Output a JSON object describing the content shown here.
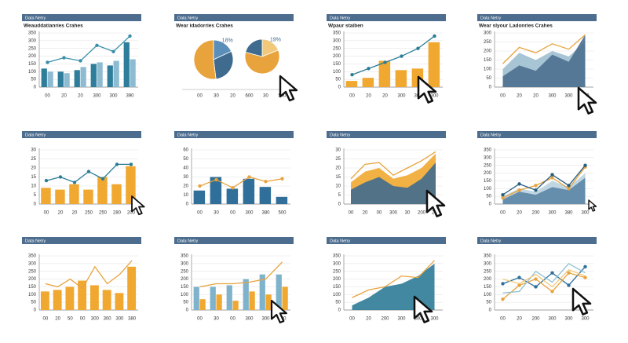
{
  "chart_data": [
    {
      "type": "combo",
      "header": "Data Netry",
      "title": "Weauddatianries Crahes",
      "categories": [
        "00",
        "20",
        "20",
        "300",
        "300",
        "390"
      ],
      "ylim": [
        0,
        350
      ],
      "yticks": [
        0,
        50,
        100,
        150,
        200,
        250,
        300,
        350
      ],
      "grid": true,
      "series": [
        {
          "type": "bar",
          "color": "#2e7d9a",
          "values": [
            120,
            100,
            110,
            150,
            140,
            290
          ]
        },
        {
          "type": "bar",
          "color": "#8dbbd2",
          "values": [
            100,
            90,
            130,
            160,
            170,
            180
          ]
        },
        {
          "type": "line",
          "color": "#3a8fa8",
          "markers": true,
          "values": [
            160,
            190,
            170,
            270,
            230,
            330
          ]
        }
      ]
    },
    {
      "type": "pie",
      "header": "Data Netry",
      "title": "Wear idadorries Crahes",
      "categories": [
        "00",
        "30",
        "20",
        "600",
        "30",
        "500"
      ],
      "pies": [
        {
          "values": [
            18,
            30,
            52
          ],
          "colors": [
            "#5b8fb9",
            "#3f6b8f",
            "#e8a33d"
          ],
          "value_labels": [
            "18%",
            null,
            null
          ]
        },
        {
          "values": [
            19,
            60,
            21
          ],
          "colors": [
            "#f2c87a",
            "#e8a33d",
            "#3f6b8f"
          ],
          "value_labels": [
            "19%",
            null,
            null
          ]
        }
      ]
    },
    {
      "type": "combo",
      "header": "Data Netry",
      "title": "Wpaur staiben",
      "categories": [
        "00",
        "20",
        "20",
        "300",
        "300",
        "300"
      ],
      "ylim": [
        0,
        350
      ],
      "yticks": [
        0,
        50,
        100,
        150,
        200,
        250,
        300,
        350
      ],
      "grid": true,
      "series": [
        {
          "type": "bar",
          "color": "#f0a830",
          "values": [
            40,
            60,
            170,
            110,
            120,
            290
          ]
        },
        {
          "type": "line",
          "color": "#2a7d95",
          "markers": true,
          "values": [
            80,
            120,
            160,
            200,
            250,
            330
          ]
        }
      ]
    },
    {
      "type": "area",
      "header": "Data Netry",
      "title": "Wear slyour Ladonries Crahes",
      "categories": [
        "00",
        "20",
        "20",
        "300",
        "300",
        "300"
      ],
      "ylim": [
        0,
        300
      ],
      "yticks": [
        0,
        50,
        100,
        150,
        200,
        250,
        300
      ],
      "grid": true,
      "series": [
        {
          "type": "area",
          "color": "#9fbfd0",
          "values": [
            100,
            190,
            150,
            200,
            170,
            250
          ]
        },
        {
          "type": "area",
          "color": "#4b6f8f",
          "values": [
            60,
            120,
            90,
            180,
            140,
            290
          ]
        },
        {
          "type": "line",
          "color": "#e8a33d",
          "markers": false,
          "values": [
            130,
            220,
            190,
            240,
            210,
            290
          ]
        }
      ]
    },
    {
      "type": "combo",
      "header": "Data Netry",
      "categories": [
        "00",
        "20",
        "20",
        "250",
        "250",
        "280",
        "200"
      ],
      "ylim": [
        0,
        30
      ],
      "yticks": [
        0,
        5,
        10,
        15,
        20,
        25,
        30
      ],
      "grid": true,
      "series": [
        {
          "type": "bar",
          "color": "#f0a830",
          "values": [
            9,
            8,
            11,
            8,
            15,
            11,
            21
          ]
        },
        {
          "type": "line",
          "color": "#2a7d95",
          "markers": true,
          "values": [
            13,
            15,
            12,
            18,
            14,
            22,
            22
          ]
        }
      ]
    },
    {
      "type": "combo",
      "header": "Data Netry",
      "categories": [
        "00",
        "30",
        "00",
        "300",
        "380",
        "500"
      ],
      "ylim": [
        0,
        60
      ],
      "yticks": [
        0,
        10,
        20,
        30,
        40,
        50,
        60
      ],
      "grid": true,
      "series": [
        {
          "type": "bar",
          "color": "#2f6f9a",
          "values": [
            15,
            30,
            17,
            28,
            19,
            8
          ]
        },
        {
          "type": "line",
          "color": "#e8a33d",
          "markers": true,
          "values": [
            20,
            27,
            18,
            30,
            25,
            28
          ]
        }
      ]
    },
    {
      "type": "area",
      "header": "Data Netry",
      "categories": [
        "00",
        "20",
        "00",
        "300",
        "30",
        "200",
        "290"
      ],
      "ylim": [
        0,
        30
      ],
      "yticks": [
        0,
        5,
        10,
        15,
        20,
        25,
        30
      ],
      "grid": true,
      "series": [
        {
          "type": "area",
          "color": "#f0a830",
          "values": [
            12,
            18,
            20,
            14,
            16,
            20,
            28
          ]
        },
        {
          "type": "area",
          "color": "#3f6b8f",
          "values": [
            8,
            12,
            15,
            10,
            9,
            14,
            23
          ]
        },
        {
          "type": "line",
          "color": "#e8a33d",
          "markers": false,
          "values": [
            14,
            22,
            23,
            16,
            20,
            24,
            29
          ]
        }
      ]
    },
    {
      "type": "area",
      "header": "Data Netry",
      "categories": [
        "00",
        "20",
        "200",
        "300",
        "380",
        "300"
      ],
      "ylim": [
        0,
        350
      ],
      "yticks": [
        0,
        50,
        100,
        150,
        200,
        250,
        300,
        350
      ],
      "grid": true,
      "series": [
        {
          "type": "area",
          "color": "#b9d2df",
          "values": [
            50,
            100,
            80,
            150,
            110,
            200
          ]
        },
        {
          "type": "area",
          "color": "#5a86a6",
          "values": [
            30,
            80,
            60,
            110,
            90,
            170
          ]
        },
        {
          "type": "line",
          "color": "#e8a33d",
          "markers": true,
          "values": [
            40,
            90,
            120,
            170,
            100,
            240
          ]
        },
        {
          "type": "line",
          "color": "#2a5f80",
          "markers": true,
          "values": [
            60,
            130,
            90,
            190,
            120,
            250
          ]
        }
      ]
    },
    {
      "type": "combo",
      "header": "Data Netry",
      "categories": [
        "00",
        "20",
        "50",
        "00",
        "300",
        "300",
        "300",
        "380"
      ],
      "ylim": [
        0,
        350
      ],
      "yticks": [
        0,
        50,
        100,
        150,
        200,
        250,
        300,
        350
      ],
      "grid": true,
      "series": [
        {
          "type": "bar",
          "color": "#f0a830",
          "values": [
            120,
            130,
            150,
            190,
            160,
            130,
            110,
            280
          ]
        },
        {
          "type": "line",
          "color": "#e8a33d",
          "markers": false,
          "values": [
            170,
            150,
            200,
            140,
            280,
            170,
            230,
            320
          ]
        }
      ]
    },
    {
      "type": "combo",
      "header": "Data Netry",
      "categories": [
        "00",
        "30",
        "00",
        "300",
        "300",
        "300"
      ],
      "ylim": [
        0,
        350
      ],
      "yticks": [
        0,
        50,
        100,
        150,
        200,
        250,
        300,
        350
      ],
      "grid": true,
      "series": [
        {
          "type": "bar",
          "color": "#7fb3cc",
          "values": [
            150,
            150,
            160,
            200,
            230,
            230
          ]
        },
        {
          "type": "bar",
          "color": "#f0a830",
          "values": [
            70,
            100,
            60,
            120,
            100,
            150
          ]
        },
        {
          "type": "line",
          "color": "#e8a33d",
          "markers": false,
          "values": [
            150,
            170,
            170,
            180,
            200,
            310
          ]
        }
      ]
    },
    {
      "type": "area",
      "header": "Data Netry",
      "categories": [
        "00",
        "20",
        "200",
        "300",
        "300",
        "300"
      ],
      "ylim": [
        0,
        350
      ],
      "yticks": [
        0,
        50,
        100,
        150,
        200,
        250,
        300,
        350
      ],
      "grid": true,
      "series": [
        {
          "type": "area",
          "color": "#2d7b96",
          "values": [
            30,
            80,
            150,
            170,
            220,
            300
          ]
        },
        {
          "type": "line",
          "color": "#e8a33d",
          "markers": false,
          "values": [
            80,
            130,
            150,
            220,
            210,
            320
          ]
        }
      ]
    },
    {
      "type": "line",
      "header": "Data Netry",
      "categories": [
        "00",
        "20",
        "200",
        "300",
        "300",
        "300"
      ],
      "ylim": [
        0,
        350
      ],
      "yticks": [
        0,
        50,
        100,
        150,
        200,
        250,
        300,
        350
      ],
      "grid": true,
      "series": [
        {
          "type": "line",
          "color": "#2f6f9a",
          "markers": true,
          "values": [
            170,
            210,
            150,
            240,
            160,
            280
          ]
        },
        {
          "type": "line",
          "color": "#e8a33d",
          "markers": true,
          "values": [
            70,
            160,
            200,
            120,
            240,
            210
          ]
        },
        {
          "type": "line",
          "color": "#8fc0d4",
          "markers": false,
          "values": [
            110,
            120,
            250,
            180,
            300,
            240
          ]
        },
        {
          "type": "line",
          "color": "#f2c87a",
          "markers": false,
          "values": [
            200,
            170,
            230,
            150,
            260,
            220
          ]
        }
      ]
    }
  ]
}
